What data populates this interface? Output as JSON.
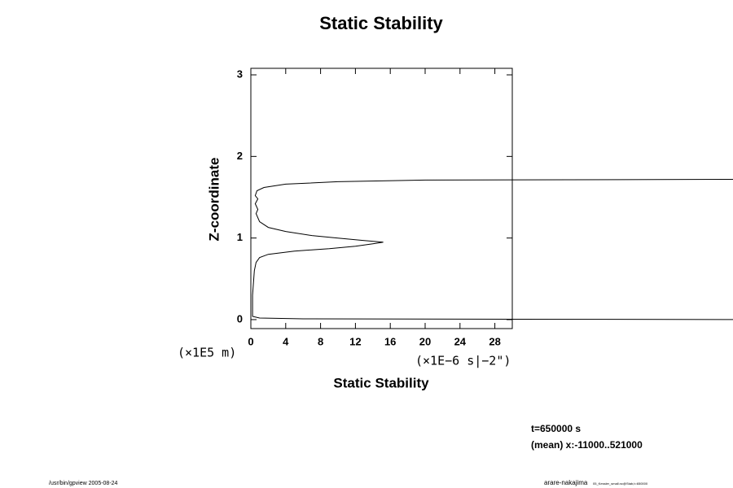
{
  "chart_data": {
    "type": "line",
    "title": "Static Stability",
    "xlabel": "Static Stability",
    "ylabel": "Z-coordinate",
    "yunit": "(×1E5 m)",
    "xunit": "(×1E−6 s|−2\")",
    "annotations": [
      "t=650000 s",
      "(mean) x:-11000..521000"
    ],
    "footer_left": "/usr/bin/gpview 2005-08-24",
    "footer_right": "arare-nakajima",
    "footer_right_small": "05_Kessler_small.nc@Stab,t=650000",
    "xlim": [
      0,
      30
    ],
    "ylim": [
      -0.11,
      3.08
    ],
    "xticks": [
      0,
      4,
      8,
      12,
      16,
      20,
      24,
      28
    ],
    "yticks": [
      0,
      1,
      2,
      3
    ],
    "series": [
      {
        "color": "#000000",
        "x": [
          60,
          6,
          1,
          0.2,
          0.2,
          0.3,
          0.4,
          0.6,
          1.0,
          2,
          5,
          9,
          12,
          14,
          15.2,
          13,
          10,
          7,
          4,
          2,
          1,
          0.6,
          0.8,
          0.5,
          0.8,
          0.5,
          0.7,
          1.5,
          4,
          10,
          20,
          60
        ],
        "values": [
          0.0,
          0.01,
          0.02,
          0.04,
          0.3,
          0.45,
          0.6,
          0.7,
          0.76,
          0.8,
          0.84,
          0.87,
          0.9,
          0.93,
          0.95,
          0.97,
          1.0,
          1.03,
          1.08,
          1.13,
          1.2,
          1.3,
          1.35,
          1.42,
          1.48,
          1.52,
          1.58,
          1.62,
          1.66,
          1.69,
          1.71,
          1.72
        ]
      }
    ]
  }
}
